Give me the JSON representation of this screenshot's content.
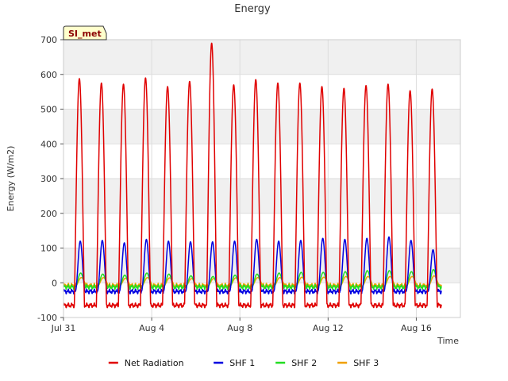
{
  "chart_data": {
    "type": "line",
    "title": "Energy",
    "xlabel": "Time",
    "ylabel": "Energy (W/m2)",
    "site_label": "SI_met",
    "x_start": "Jul 31",
    "x_days_range": [
      0,
      18
    ],
    "ylim": [
      -100,
      700
    ],
    "y_ticks": [
      -100,
      0,
      100,
      200,
      300,
      400,
      500,
      600,
      700
    ],
    "x_ticks": [
      {
        "day": 0,
        "label": "Jul 31"
      },
      {
        "day": 4,
        "label": "Aug 4"
      },
      {
        "day": 8,
        "label": "Aug 8"
      },
      {
        "day": 12,
        "label": "Aug 12"
      },
      {
        "day": 16,
        "label": "Aug 16"
      }
    ],
    "grid": true,
    "legend_position": "bottom",
    "day_peaks": {
      "Net Radiation": [
        588,
        575,
        572,
        590,
        565,
        580,
        690,
        570,
        585,
        575,
        575,
        565,
        560,
        568,
        572,
        553,
        558
      ],
      "SHF 1": [
        120,
        122,
        115,
        125,
        120,
        118,
        118,
        120,
        125,
        120,
        122,
        128,
        125,
        128,
        132,
        122,
        95
      ],
      "SHF 2": [
        28,
        25,
        22,
        28,
        25,
        20,
        18,
        22,
        25,
        28,
        30,
        30,
        32,
        35,
        35,
        32,
        38
      ],
      "SHF 3": [
        15,
        15,
        13,
        15,
        14,
        12,
        12,
        14,
        15,
        15,
        16,
        16,
        18,
        18,
        18,
        18,
        20
      ]
    },
    "night_min": {
      "Net Radiation": -65,
      "SHF 1": -25,
      "SHF 2": -12,
      "SHF 3": -8
    },
    "series": [
      {
        "name": "Net Radiation",
        "color": "#e00000"
      },
      {
        "name": "SHF 1",
        "color": "#0000e0"
      },
      {
        "name": "SHF 2",
        "color": "#22dd22"
      },
      {
        "name": "SHF 3",
        "color": "#f0a000"
      }
    ]
  }
}
